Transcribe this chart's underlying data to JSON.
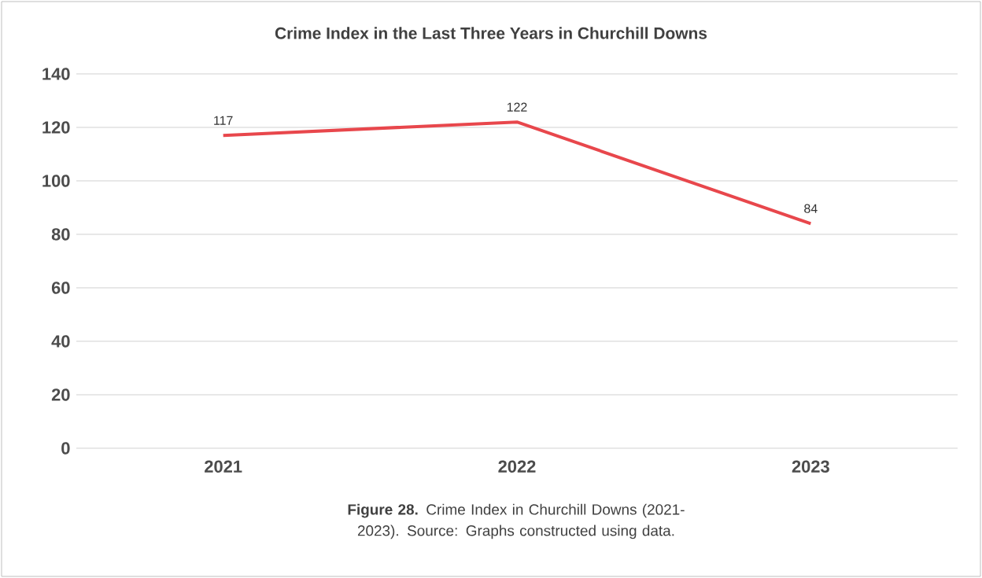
{
  "chart_data": {
    "type": "line",
    "title": "Crime Index in the Last Three Years in Churchill Downs",
    "categories": [
      "2021",
      "2022",
      "2023"
    ],
    "values": [
      117,
      122,
      84
    ],
    "color": "#e8474c",
    "ylim": [
      0,
      140
    ],
    "yticks": [
      0,
      20,
      40,
      60,
      80,
      100,
      120,
      140
    ],
    "grid": "y",
    "data_labels": true,
    "annotations": [
      "**Figure 28.** Crime Index in Churchill Downs (2021-2023). Source: Graphs constructed using data."
    ]
  }
}
